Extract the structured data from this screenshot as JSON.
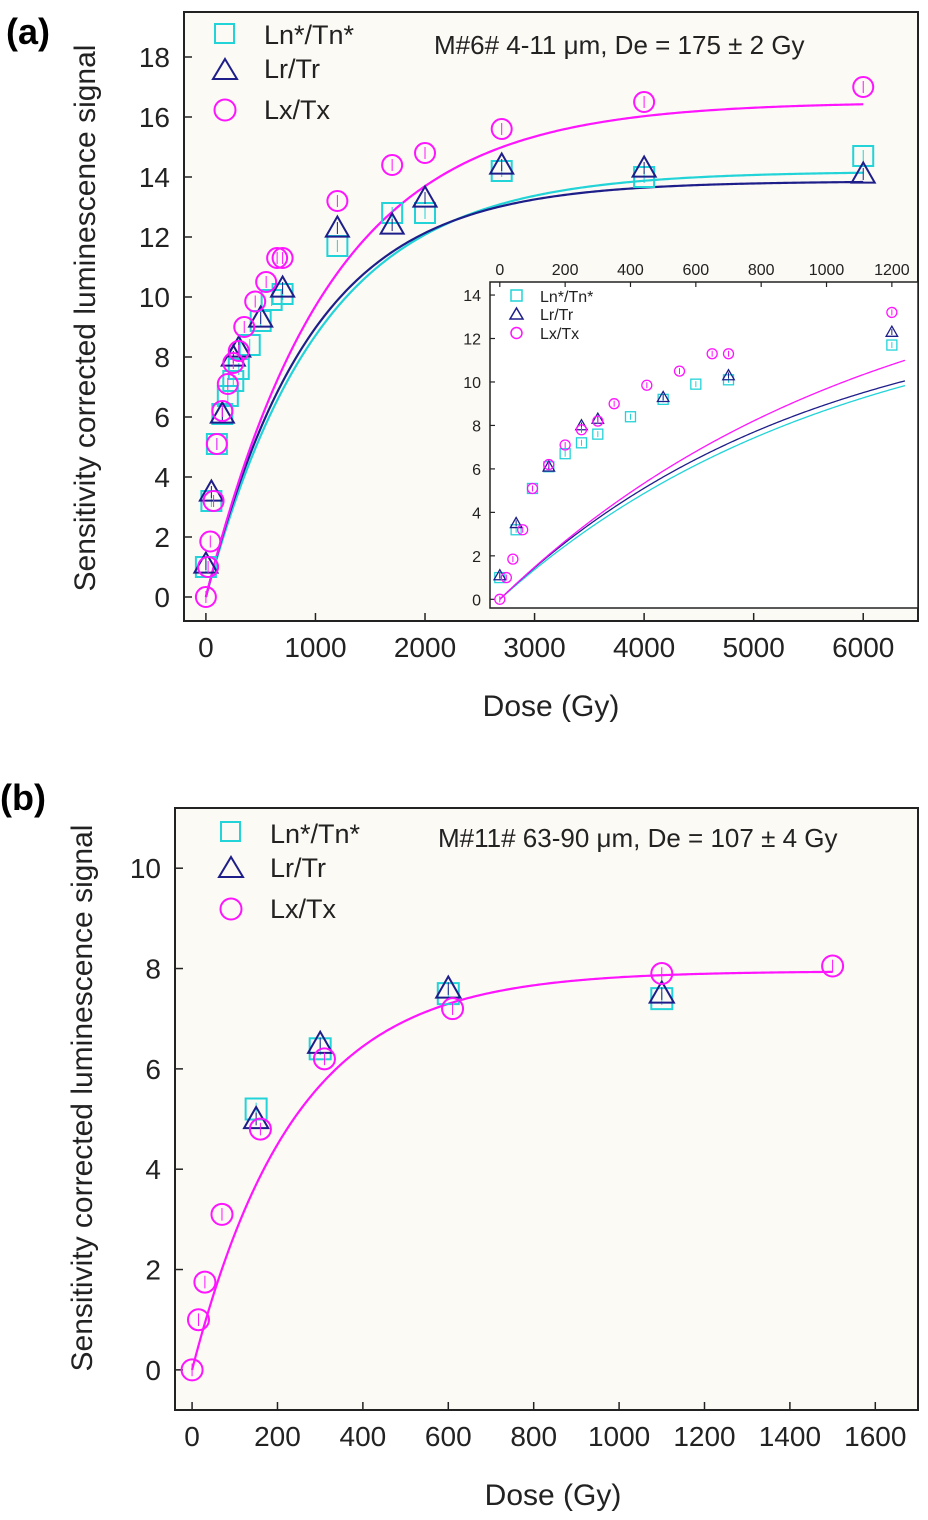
{
  "colors": {
    "ln": "#22d3d8",
    "lr": "#1e1e8a",
    "lx": "#ff14ff",
    "axis": "#222222",
    "plot_bg": "#fcfaf4"
  },
  "chart_data": [
    {
      "type": "scatter",
      "panel_label": "(a)",
      "annotation": "M#6# 4-11 μm, De = 175 ± 2 Gy",
      "xlabel": "Dose (Gy)",
      "ylabel": "Sensitivity corrected luminescence signal",
      "xlim": [
        -200,
        6500
      ],
      "ylim": [
        -0.8,
        19.5
      ],
      "xticks": [
        0,
        1000,
        2000,
        3000,
        4000,
        5000,
        6000
      ],
      "yticks": [
        0,
        2,
        4,
        6,
        8,
        10,
        12,
        14,
        16,
        18
      ],
      "legend": "top-left",
      "series": [
        {
          "name": "Ln*/Tn*",
          "marker": "square",
          "color": "#22d3d8",
          "x": [
            0,
            50,
            100,
            150,
            200,
            250,
            300,
            400,
            500,
            600,
            700,
            1200,
            1700,
            2000,
            2700,
            4000,
            6000
          ],
          "y": [
            1.0,
            3.2,
            5.1,
            6.1,
            6.7,
            7.2,
            7.6,
            8.4,
            9.2,
            9.9,
            10.1,
            11.7,
            12.8,
            12.8,
            14.2,
            14.0,
            14.7
          ]
        },
        {
          "name": "Lr/Tr",
          "marker": "triangle",
          "color": "#1e1e8a",
          "x": [
            0,
            50,
            150,
            250,
            300,
            500,
            700,
            1200,
            1700,
            2000,
            2700,
            4000,
            6000
          ],
          "y": [
            1.1,
            3.5,
            6.1,
            8.0,
            8.3,
            9.3,
            10.3,
            12.3,
            12.4,
            13.3,
            14.4,
            14.3,
            14.1
          ]
        },
        {
          "name": "Lx/Tx",
          "marker": "circle",
          "color": "#ff14ff",
          "x": [
            0,
            20,
            40,
            70,
            100,
            150,
            200,
            250,
            300,
            350,
            450,
            550,
            650,
            700,
            1200,
            1700,
            2000,
            2700,
            4000,
            6000
          ],
          "y": [
            0,
            1.0,
            1.85,
            3.2,
            5.1,
            6.2,
            7.1,
            7.8,
            8.2,
            9.0,
            9.85,
            10.5,
            11.3,
            11.3,
            13.2,
            14.4,
            14.8,
            15.6,
            16.5,
            17.0
          ]
        }
      ],
      "fits": [
        {
          "series": "Ln*/Tn*",
          "Imax": 14.6,
          "D0": 1050,
          "D1": 30
        },
        {
          "series": "Lr/Tr",
          "Imax": 14.3,
          "D0": 960,
          "D1": 30
        },
        {
          "series": "Lx/Tx",
          "Imax": 16.95,
          "D0": 1130,
          "D1": 30
        }
      ],
      "inset": {
        "xlim": [
          -30,
          1280
        ],
        "ylim": [
          -0.4,
          14.6
        ],
        "xticks": [
          0,
          200,
          400,
          600,
          800,
          1000,
          1200
        ],
        "yticks": [
          0,
          2,
          4,
          6,
          8,
          10,
          12,
          14
        ],
        "xaxis_position": "top",
        "legend": "top-left"
      }
    },
    {
      "type": "scatter",
      "panel_label": "(b)",
      "annotation": "M#11# 63-90 μm, De = 107 ± 4 Gy",
      "xlabel": "Dose (Gy)",
      "ylabel": "Sensitivity corrected luminescence signal",
      "xlim": [
        -40,
        1700
      ],
      "ylim": [
        -0.8,
        11.2
      ],
      "xticks": [
        0,
        200,
        400,
        600,
        800,
        1000,
        1200,
        1400,
        1600
      ],
      "yticks": [
        0,
        2,
        4,
        6,
        8,
        10
      ],
      "legend": "top-left",
      "series": [
        {
          "name": "Ln*/Tn*",
          "marker": "square",
          "color": "#22d3d8",
          "x": [
            150,
            300,
            600,
            1100
          ],
          "y": [
            5.2,
            6.4,
            7.5,
            7.4
          ]
        },
        {
          "name": "Lr/Tr",
          "marker": "triangle",
          "color": "#1e1e8a",
          "x": [
            150,
            300,
            600,
            1100
          ],
          "y": [
            5.0,
            6.5,
            7.6,
            7.5
          ]
        },
        {
          "name": "Lx/Tx",
          "marker": "circle",
          "color": "#ff14ff",
          "x": [
            0,
            15,
            30,
            70,
            160,
            310,
            610,
            1100,
            1500
          ],
          "y": [
            0,
            1.0,
            1.75,
            3.1,
            4.8,
            6.2,
            7.2,
            7.9,
            8.05
          ]
        }
      ],
      "fits": [
        {
          "series": "Lx/Tx",
          "Imax": 8.15,
          "D0": 240,
          "D1": 6
        }
      ]
    }
  ]
}
